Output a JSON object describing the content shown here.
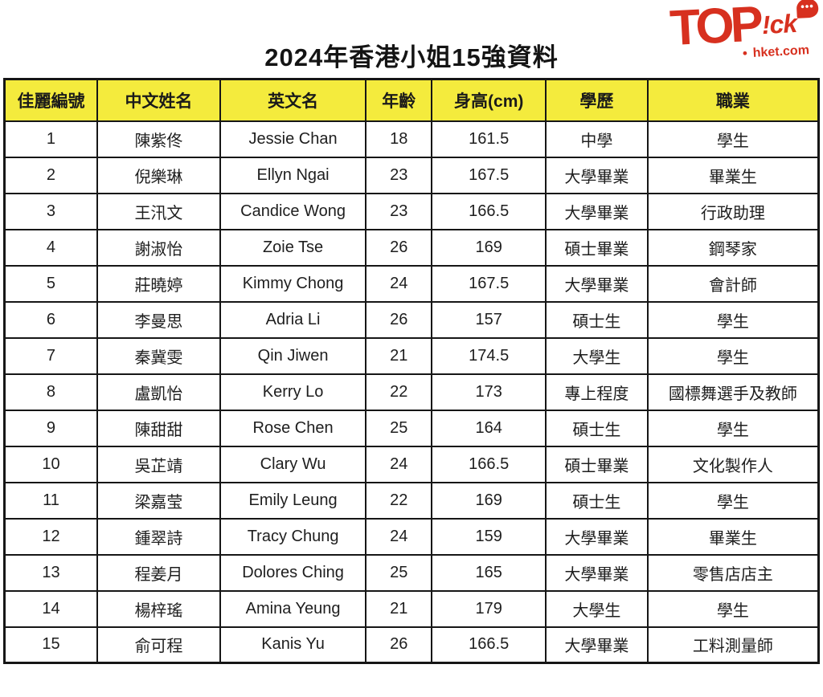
{
  "page": {
    "title": "2024年香港小姐15強資料"
  },
  "logo": {
    "text_top": "TOP",
    "text_ick": "!ck",
    "bubble_dots": "•••",
    "dot": "●",
    "domain": "hket.com",
    "color": "#D7301F"
  },
  "chart_data": {
    "type": "table",
    "title": "2024年香港小姐15強資料",
    "header_bg": "#F4EB3D",
    "columns": [
      "佳麗編號",
      "中文姓名",
      "英文名",
      "年齡",
      "身高(cm)",
      "學歷",
      "職業"
    ],
    "rows": [
      [
        "1",
        "陳紫佟",
        "Jessie Chan",
        "18",
        "161.5",
        "中學",
        "學生"
      ],
      [
        "2",
        "倪樂琳",
        "Ellyn Ngai",
        "23",
        "167.5",
        "大學畢業",
        "畢業生"
      ],
      [
        "3",
        "王汛文",
        "Candice Wong",
        "23",
        "166.5",
        "大學畢業",
        "行政助理"
      ],
      [
        "4",
        "謝淑怡",
        "Zoie Tse",
        "26",
        "169",
        "碩士畢業",
        "鋼琴家"
      ],
      [
        "5",
        "莊曉婷",
        "Kimmy Chong",
        "24",
        "167.5",
        "大學畢業",
        "會計師"
      ],
      [
        "6",
        "李曼思",
        "Adria Li",
        "26",
        "157",
        "碩士生",
        "學生"
      ],
      [
        "7",
        "秦冀雯",
        "Qin Jiwen",
        "21",
        "174.5",
        "大學生",
        "學生"
      ],
      [
        "8",
        "盧凱怡",
        "Kerry Lo",
        "22",
        "173",
        "專上程度",
        "國標舞選手及教師"
      ],
      [
        "9",
        "陳甜甜",
        "Rose Chen",
        "25",
        "164",
        "碩士生",
        "學生"
      ],
      [
        "10",
        "吳芷靖",
        "Clary Wu",
        "24",
        "166.5",
        "碩士畢業",
        "文化製作人"
      ],
      [
        "11",
        "梁嘉莹",
        "Emily Leung",
        "22",
        "169",
        "碩士生",
        "學生"
      ],
      [
        "12",
        "鍾翠詩",
        "Tracy Chung",
        "24",
        "159",
        "大學畢業",
        "畢業生"
      ],
      [
        "13",
        "程姜月",
        "Dolores Ching",
        "25",
        "165",
        "大學畢業",
        "零售店店主"
      ],
      [
        "14",
        "楊梓瑤",
        "Amina Yeung",
        "21",
        "179",
        "大學生",
        "學生"
      ],
      [
        "15",
        "俞可程",
        "Kanis Yu",
        "26",
        "166.5",
        "大學畢業",
        "工料測量師"
      ]
    ]
  }
}
